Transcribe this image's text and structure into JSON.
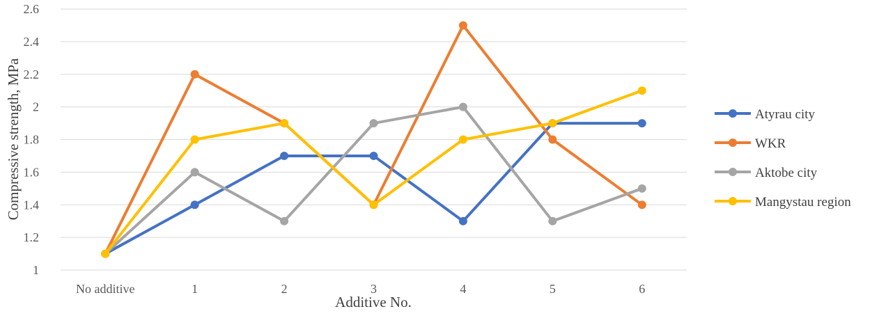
{
  "chart_data": {
    "type": "line",
    "categories": [
      "No additive",
      "1",
      "2",
      "3",
      "4",
      "5",
      "6"
    ],
    "xlabel": "Additive No.",
    "ylabel": "Compressive strength, MPa",
    "ylim": [
      1,
      2.6
    ],
    "yticks": [
      1,
      1.2,
      1.4,
      1.6,
      1.8,
      2,
      2.2,
      2.4,
      2.6
    ],
    "ytick_labels": [
      "1",
      "1.2",
      "1.4",
      "1.6",
      "1.8",
      "2",
      "2.2",
      "2.4",
      "2.6"
    ],
    "grid": true,
    "legend_position": "right",
    "series": [
      {
        "name": "Atyrau city",
        "color": "#4472C4",
        "values": [
          1.1,
          1.4,
          1.7,
          1.7,
          1.3,
          1.9,
          1.9
        ]
      },
      {
        "name": "WKR",
        "color": "#ED7D31",
        "values": [
          1.1,
          2.2,
          1.9,
          1.4,
          2.5,
          1.8,
          1.4
        ]
      },
      {
        "name": "Aktobe city",
        "color": "#A5A5A5",
        "values": [
          1.1,
          1.6,
          1.3,
          1.9,
          2.0,
          1.3,
          1.5
        ]
      },
      {
        "name": "Mangystau region",
        "color": "#FFC000",
        "values": [
          1.1,
          1.8,
          1.9,
          1.4,
          1.8,
          1.9,
          2.1
        ]
      }
    ]
  }
}
